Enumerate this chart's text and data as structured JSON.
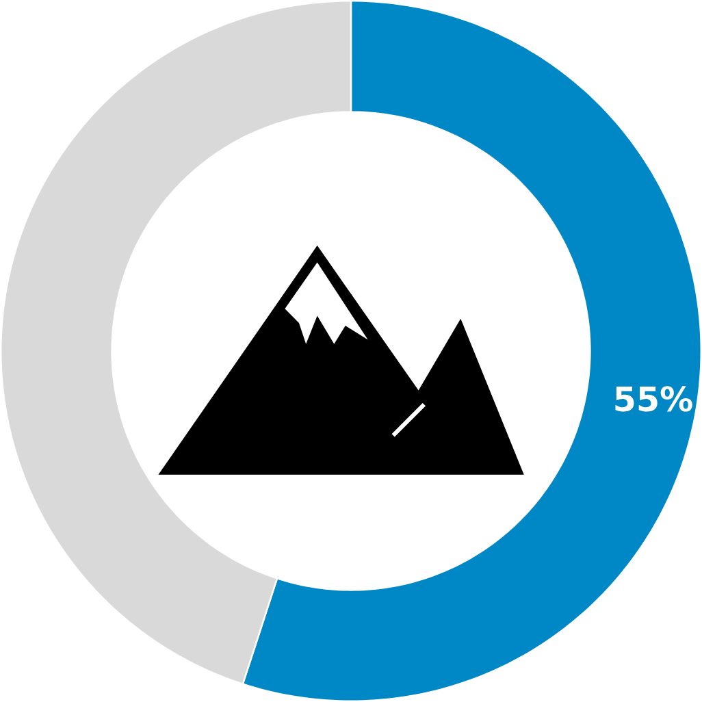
{
  "chart_data": {
    "type": "donut",
    "categories": [
      null,
      null
    ],
    "values": [
      55,
      45
    ],
    "colors": [
      "#0088c6",
      "#d9d9d9"
    ],
    "value_labels": [
      "55%",
      null
    ]
  }
}
